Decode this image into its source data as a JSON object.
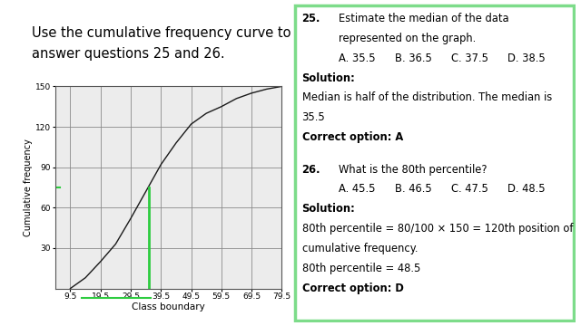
{
  "header": {
    "lines": [
      "Use the cumulative frequency curve to",
      "answer questions 25 and 26."
    ]
  },
  "chart_data": {
    "type": "line",
    "x_label": "Class boundary",
    "y_label": "Cumulative frequency",
    "x": [
      9.5,
      14.5,
      19.5,
      24.5,
      29.5,
      34.5,
      39.5,
      44.5,
      49.5,
      54.5,
      59.5,
      64.5,
      69.5,
      74.5,
      79.5
    ],
    "values": [
      0,
      8,
      20,
      33,
      52,
      72,
      92,
      108,
      122,
      130,
      135,
      141,
      145,
      148,
      150
    ],
    "color": "#1a1a1a",
    "xlim": [
      4.5,
      79.5
    ],
    "xticks": [
      9.5,
      19.5,
      29.5,
      39.5,
      49.5,
      59.5,
      69.5,
      79.5
    ],
    "ylim": [
      0,
      150
    ],
    "yticks": [
      30,
      60,
      90,
      120,
      150
    ],
    "grid": true,
    "median_guide": {
      "x": 35.5,
      "y": 75
    }
  },
  "panel": {
    "questions": [
      {
        "number": "25.",
        "text_lines": [
          "Estimate the median of the data",
          "represented on the graph."
        ],
        "options": [
          "A. 35.5",
          "B. 36.5",
          "C. 37.5",
          "D. 38.5"
        ],
        "solution_heading": "Solution:",
        "solution_lines": [
          "Median is half of the distribution. The median is",
          "35.5"
        ],
        "answer": "Correct option: A"
      },
      {
        "number": "26.",
        "text_lines": [
          "What is the 80th percentile?"
        ],
        "options": [
          "A. 45.5",
          "B. 46.5",
          "C. 47.5",
          "D. 48.5"
        ],
        "solution_heading": "Solution:",
        "solution_lines": [
          "80th percentile = 80/100 × 150 = 120th position of",
          "cumulative frequency.",
          "80th percentile = 48.5"
        ],
        "answer": "Correct option: D"
      }
    ]
  }
}
